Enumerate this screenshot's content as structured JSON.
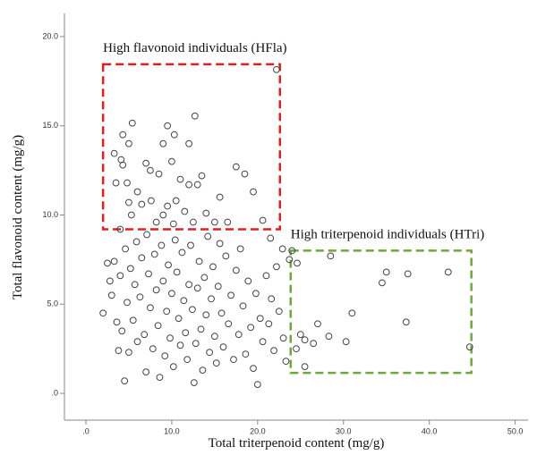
{
  "chart_data": {
    "type": "scatter",
    "x_label": "Total triterpenoid content (mg/g)",
    "y_label": "Total flavonoid content (mg/g)",
    "color": "#444444",
    "xlim": [
      -2.5,
      51.5
    ],
    "ylim": [
      -1.5,
      21.3
    ],
    "xticks": [
      {
        "value": 0,
        "label": ".0"
      },
      {
        "value": 10,
        "label": "10.0"
      },
      {
        "value": 20,
        "label": "20.0"
      },
      {
        "value": 30,
        "label": "30.0"
      },
      {
        "value": 40,
        "label": "40.0"
      },
      {
        "value": 50,
        "label": "50.0"
      }
    ],
    "yticks": [
      {
        "value": 0,
        "label": ".0"
      },
      {
        "value": 5,
        "label": "5.0"
      },
      {
        "value": 10,
        "label": "10.0"
      },
      {
        "value": 15,
        "label": "15.0"
      },
      {
        "value": 20,
        "label": "20.0"
      }
    ],
    "regions": [
      {
        "label": "High flavonoid individuals (HFla)",
        "color": "#e02020",
        "x": [
          2.0,
          22.6
        ],
        "y": [
          9.2,
          18.45
        ]
      },
      {
        "label": "High triterpenoid individuals (HTri)",
        "color": "#6aaa3a",
        "x": [
          23.85,
          44.9
        ],
        "y": [
          1.15,
          8.0
        ]
      }
    ],
    "x": [
      22.2,
      12.7,
      5.4,
      9.5,
      4.3,
      10.3,
      12,
      9,
      5,
      4.1,
      3.3,
      3.5,
      4.8,
      4.3,
      7,
      7.5,
      8.5,
      10,
      11,
      12,
      13,
      13.5,
      17.5,
      18.5,
      19.5,
      15.6,
      9.5,
      6,
      6.5,
      5,
      7.6,
      10.5,
      11.5,
      9,
      14,
      15,
      16.5,
      8.2,
      10.2,
      12.5,
      4,
      5.3,
      42.2,
      44.7,
      37.3,
      37.5,
      35,
      34.5,
      31,
      30.3,
      28.3,
      28.5,
      27,
      26.5,
      25.5,
      25,
      25.5,
      24.5,
      24.6,
      23.7,
      22.9,
      24,
      21.5,
      20.6,
      2,
      2.5,
      2.8,
      3,
      3.3,
      3.6,
      3.8,
      4,
      4.2,
      4.5,
      4.6,
      4.8,
      5,
      5.2,
      5.5,
      5.7,
      5.9,
      6,
      6.3,
      6.5,
      6.8,
      7,
      7.1,
      7.3,
      7.5,
      7.8,
      8,
      8.2,
      8.4,
      8.6,
      8.8,
      9,
      9.2,
      9.4,
      9.6,
      9.8,
      10,
      10.2,
      10.4,
      10.6,
      10.8,
      11,
      11.2,
      11.4,
      11.6,
      11.8,
      12,
      12.2,
      12.4,
      12.6,
      12.8,
      13,
      13.2,
      13.4,
      13.6,
      13.8,
      14,
      14.2,
      14.4,
      14.6,
      14.8,
      15,
      15.2,
      15.4,
      15.6,
      15.8,
      16,
      16.3,
      16.6,
      16.9,
      17.2,
      17.5,
      17.8,
      18,
      18.3,
      18.6,
      18.9,
      19.2,
      19.5,
      19.8,
      20,
      20.3,
      20.6,
      21,
      21.3,
      21.6,
      21.9,
      22.2,
      22.5,
      23,
      23.3
    ],
    "values": [
      18.15,
      15.55,
      15.15,
      15,
      14.5,
      14.5,
      14,
      14,
      14,
      13.1,
      13.45,
      11.8,
      11.8,
      12.8,
      12.9,
      12.5,
      12.3,
      13,
      12,
      11.7,
      11.7,
      12.2,
      12.7,
      12.3,
      11.3,
      11,
      10.5,
      11.3,
      10.6,
      10.7,
      10.8,
      10.8,
      10.2,
      10,
      10.1,
      9.6,
      9.6,
      9.6,
      9.5,
      9.6,
      9.2,
      10,
      6.8,
      2.6,
      4,
      6.7,
      6.8,
      6.2,
      4.5,
      2.9,
      3.2,
      7.7,
      3.9,
      2.8,
      3,
      3.3,
      1.5,
      2.5,
      7.3,
      7.5,
      8.1,
      8,
      8.7,
      9.7,
      4.5,
      7.3,
      6.3,
      5.5,
      7.4,
      4,
      2.4,
      6.6,
      3.5,
      0.7,
      8.1,
      5.1,
      2.3,
      7,
      4.1,
      6.1,
      8.5,
      2.9,
      5.4,
      7.6,
      3.3,
      1.2,
      8.9,
      6.7,
      4.8,
      2.5,
      7.8,
      5.8,
      3.8,
      0.9,
      8.3,
      6.3,
      2.1,
      4.6,
      7.2,
      3.1,
      5.6,
      1.5,
      8.6,
      6.8,
      4.2,
      2.7,
      7.9,
      5.2,
      3.4,
      1.9,
      6.1,
      8.3,
      4.7,
      0.6,
      2.8,
      5.9,
      7.4,
      3.6,
      1.3,
      6.5,
      4.4,
      8.8,
      2.3,
      5.3,
      7.1,
      3.2,
      1.7,
      6,
      8.4,
      4.5,
      2.6,
      7.7,
      3.9,
      5.5,
      1.9,
      6.9,
      3.3,
      8.1,
      4.9,
      2.2,
      6.3,
      3.7,
      1.4,
      5.6,
      0.5,
      4.2,
      2.9,
      6.6,
      3.9,
      5.3,
      2.4,
      7.1,
      4.6,
      3.1,
      1.8
    ]
  }
}
